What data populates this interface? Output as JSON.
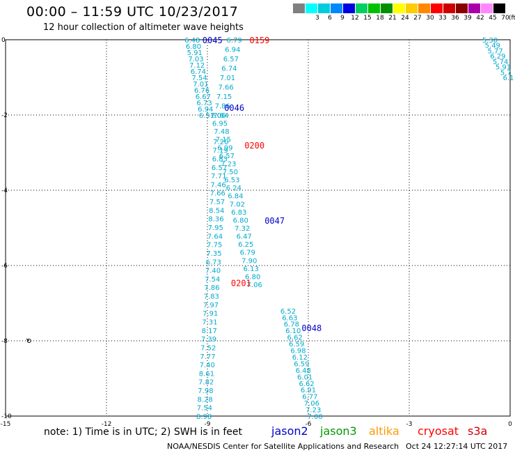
{
  "header": {
    "title": "00:00 – 11:59 UTC 10/23/2017",
    "subtitle": "12 hour collection of altimeter wave heights"
  },
  "color_scale": {
    "unit": "(ft)",
    "swatches": [
      {
        "label": "",
        "color": "#808080"
      },
      {
        "label": "3",
        "color": "#00ffff"
      },
      {
        "label": "6",
        "color": "#00ccdd"
      },
      {
        "label": "9",
        "color": "#0088ff"
      },
      {
        "label": "12",
        "color": "#0000e0"
      },
      {
        "label": "15",
        "color": "#00d060"
      },
      {
        "label": "18",
        "color": "#00c000"
      },
      {
        "label": "21",
        "color": "#009000"
      },
      {
        "label": "24",
        "color": "#ffff00"
      },
      {
        "label": "27",
        "color": "#ffcc00"
      },
      {
        "label": "30",
        "color": "#ff8800"
      },
      {
        "label": "33",
        "color": "#ff0000"
      },
      {
        "label": "36",
        "color": "#cc0000"
      },
      {
        "label": "39",
        "color": "#880000"
      },
      {
        "label": "42",
        "color": "#aa00aa"
      },
      {
        "label": "45",
        "color": "#ff88ff"
      },
      {
        "label": "70",
        "color": "#000000"
      }
    ]
  },
  "note": "note: 1) Time is in UTC; 2) SWH is in feet",
  "legend": [
    {
      "name": "jason2",
      "color": "#0000cc"
    },
    {
      "name": "jason3",
      "color": "#009900"
    },
    {
      "name": "altika",
      "color": "#ff9900"
    },
    {
      "name": "cryosat",
      "color": "#ff0000"
    },
    {
      "name": "s3a",
      "color": "#cc0000"
    }
  ],
  "footer": {
    "agency": "NOAA/NESDIS Center for Satellite Applications and Research",
    "timestamp": "Oct 24 12:27:14 UTC 2017"
  },
  "chart_data": {
    "type": "scatter",
    "xlim": [
      -15,
      0
    ],
    "ylim": [
      -10,
      0
    ],
    "x_ticks": [
      -15,
      -12,
      -9,
      -6,
      -3,
      0
    ],
    "y_ticks": [
      0,
      -2,
      -4,
      -6,
      -8,
      -10
    ],
    "grid": true,
    "series": [
      {
        "name": "jason2",
        "color": "#00aacc",
        "tracks": [
          {
            "start": [
              -9.45,
              0
            ],
            "end": [
              -9.02,
              -2.0
            ],
            "values": [
              "6.48",
              "6.80",
              "5.91",
              "7.03",
              "7.12",
              "6.74",
              "7.54",
              "7.01",
              "6.76",
              "6.67",
              "6.73",
              "6.94",
              "6.51"
            ]
          },
          {
            "start": [
              -8.2,
              0
            ],
            "end": [
              -8.6,
              -2.0
            ],
            "values": [
              "6.79",
              "6.94",
              "6.57",
              "6.74",
              "7.01",
              "7.66",
              "7.15",
              "7.86",
              "7.64"
            ]
          },
          {
            "start": [
              -8.68,
              -2.0
            ],
            "end": [
              -7.6,
              -6.5
            ],
            "values": [
              "7.06",
              "6.95",
              "7.48",
              "7.15",
              "6.99",
              "6.57",
              "7.23",
              "7.50",
              "6.53",
              "6.24",
              "6.84",
              "7.02",
              "6.83",
              "6.80",
              "7.32",
              "6.47",
              "6.25",
              "6.79",
              "7.90",
              "6.13",
              "6.80",
              "7.06"
            ]
          },
          {
            "start": [
              -8.6,
              -2.7
            ],
            "end": [
              -9.1,
              -10.0
            ],
            "values": [
              "7.20",
              "7.19",
              "6.83",
              "6.57",
              "7.71",
              "7.46",
              "7.66",
              "7.57",
              "8.54",
              "8.36",
              "7.95",
              "7.64",
              "7.75",
              "7.35",
              "6.73",
              "7.40",
              "7.54",
              "7.86",
              "7.83",
              "7.97",
              "7.91",
              "7.31",
              "8.17",
              "7.39",
              "7.52",
              "7.77",
              "7.40",
              "8.61",
              "7.82",
              "7.98",
              "8.28",
              "7.54",
              "8.98"
            ]
          },
          {
            "start": [
              -6.6,
              -7.2
            ],
            "end": [
              -5.8,
              -10.0
            ],
            "values": [
              "6.52",
              "6.63",
              "6.78",
              "6.10",
              "6.62",
              "6.59",
              "6.98",
              "6.12",
              "6.59",
              "6.48",
              "6.01",
              "6.62",
              "6.91",
              "6.77",
              "7.06",
              "7.23",
              "7.00"
            ]
          },
          {
            "start": [
              -0.6,
              0
            ],
            "end": [
              -0.05,
              -1.0
            ],
            "values": [
              "5.30",
              "5.49",
              "5.77",
              "6.29",
              "5.74",
              "5.91",
              "5.7",
              "6.1"
            ]
          }
        ]
      }
    ],
    "time_labels": [
      {
        "text": "0045",
        "x": -8.85,
        "y": 0.0,
        "color": "#0000cc"
      },
      {
        "text": "0159",
        "x": -7.45,
        "y": 0.0,
        "color": "#ff0000"
      },
      {
        "text": "0046",
        "x": -8.2,
        "y": -1.8,
        "color": "#0000cc"
      },
      {
        "text": "0200",
        "x": -7.6,
        "y": -2.8,
        "color": "#ff0000"
      },
      {
        "text": "0047",
        "x": -7.0,
        "y": -4.8,
        "color": "#0000cc"
      },
      {
        "text": "0201",
        "x": -8.0,
        "y": -6.45,
        "color": "#ff0000"
      },
      {
        "text": "0048",
        "x": -5.9,
        "y": -7.65,
        "color": "#0000cc"
      }
    ],
    "wind_barb": {
      "x": -14.3,
      "y": -8.0
    }
  }
}
